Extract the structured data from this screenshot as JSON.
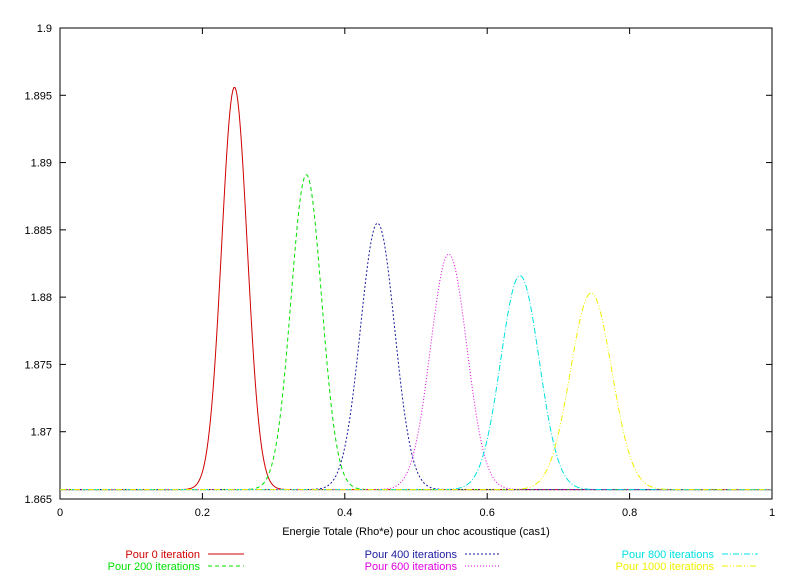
{
  "chart_data": {
    "type": "line",
    "title": "",
    "xlabel": "Energie Totale (Rho*e) pour un choc acoustique (cas1)",
    "ylabel": "",
    "xlim": [
      0,
      1
    ],
    "ylim": [
      1.865,
      1.9
    ],
    "grid": false,
    "legend_position": "bottom",
    "x_ticks": [
      "0",
      "0.2",
      "0.4",
      "0.6",
      "0.8",
      "1"
    ],
    "y_ticks": [
      "1.865",
      "1.87",
      "1.875",
      "1.88",
      "1.885",
      "1.89",
      "1.895",
      "1.9"
    ],
    "baseline": 1.8657,
    "series": [
      {
        "name": "Pour 0 iteration",
        "color": "#d00000",
        "dash": "solid",
        "peak_x": 0.245,
        "peak_y": 1.8956,
        "width": 0.018
      },
      {
        "name": "Pour 200 iterations",
        "color": "#00e000",
        "dash": "dashed",
        "peak_x": 0.346,
        "peak_y": 1.8891,
        "width": 0.0215
      },
      {
        "name": "Pour 400 iterations",
        "color": "#1a1aa0",
        "dash": "short-dashed",
        "peak_x": 0.446,
        "peak_y": 1.8855,
        "width": 0.024
      },
      {
        "name": "Pour 600 iterations",
        "color": "#e000e0",
        "dash": "dotted",
        "peak_x": 0.546,
        "peak_y": 1.8832,
        "width": 0.0255
      },
      {
        "name": "Pour 800 iterations",
        "color": "#00e0e0",
        "dash": "dash-dot",
        "peak_x": 0.646,
        "peak_y": 1.8816,
        "width": 0.027
      },
      {
        "name": "Pour 1000 iterations",
        "color": "#f0f000",
        "dash": "dash-dot-dot",
        "peak_x": 0.746,
        "peak_y": 1.8803,
        "width": 0.029
      }
    ]
  }
}
